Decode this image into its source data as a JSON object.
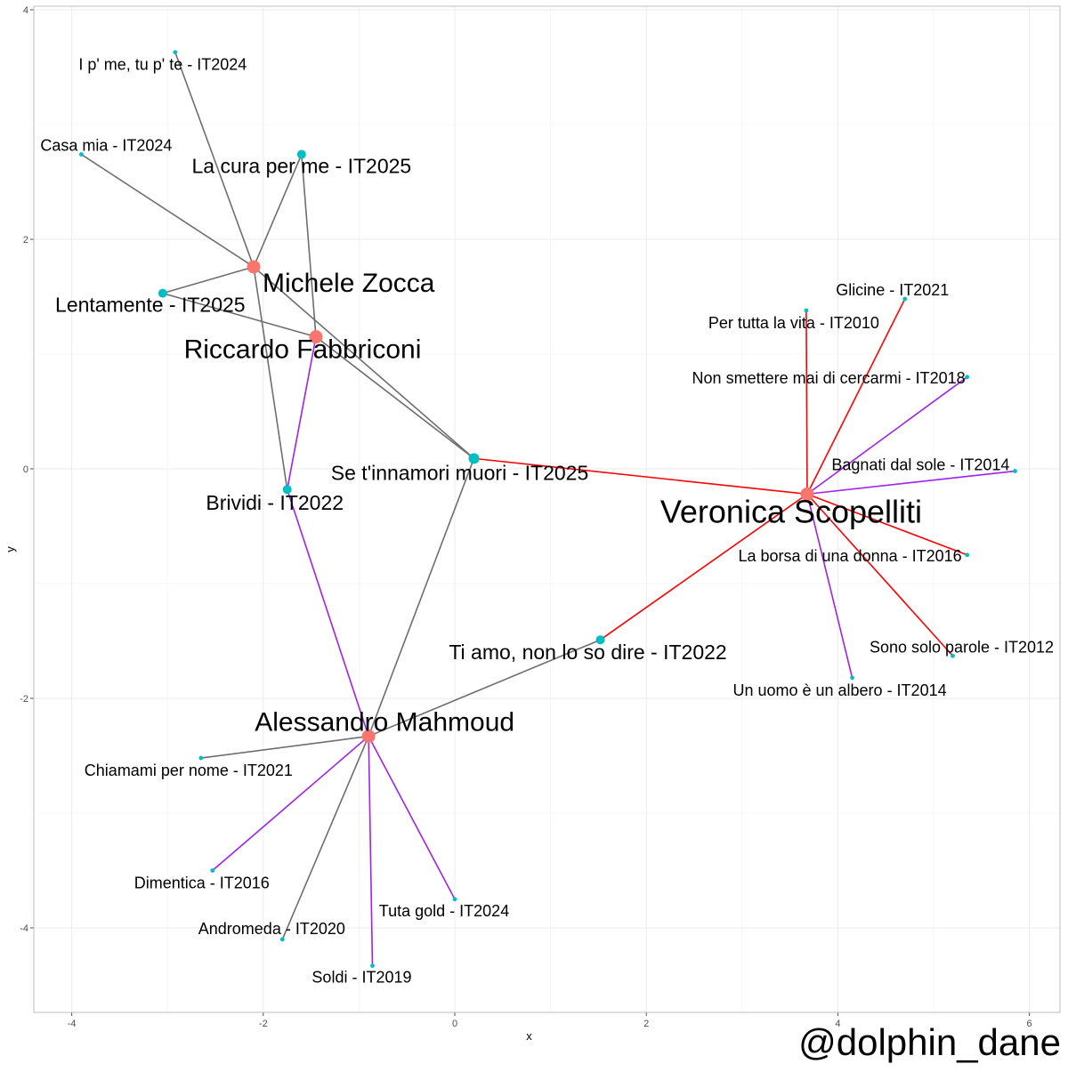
{
  "chart_data": {
    "type": "scatter",
    "subtype": "network-graph",
    "xlabel": "x",
    "ylabel": "y",
    "xlim": [
      -4.4,
      6.35
    ],
    "ylim": [
      -4.4,
      4.05
    ],
    "x_ticks": [
      -4,
      -2,
      0,
      2,
      4,
      6
    ],
    "y_ticks": [
      -4,
      -2,
      0,
      2,
      4
    ],
    "grid": true,
    "colors": {
      "artist_node": "#F8766D",
      "song_node": "#00BFC4",
      "edge_grey": "#6e6e6e",
      "edge_red": "#ff0000",
      "edge_purple": "#a020f0"
    },
    "nodes": [
      {
        "id": "michele",
        "label": "Michele Zocca",
        "kind": "artist",
        "x": -2.1,
        "y": 1.76,
        "dx": 10,
        "dy": 28,
        "anchor": "start",
        "size": "artist"
      },
      {
        "id": "riccardo",
        "label": "Riccardo Fabbriconi",
        "kind": "artist",
        "x": -1.45,
        "y": 1.15,
        "dx": -15,
        "dy": 24,
        "anchor": "middle",
        "size": "artist"
      },
      {
        "id": "veronica",
        "label": "Veronica Scopelliti",
        "kind": "artist",
        "x": 3.68,
        "y": -0.22,
        "dx": -18,
        "dy": 32,
        "anchor": "middle",
        "size": "artist-big"
      },
      {
        "id": "alessandro",
        "label": "Alessandro Mahmoud",
        "kind": "artist",
        "x": -0.9,
        "y": -2.33,
        "dx": 18,
        "dy": -6,
        "anchor": "middle",
        "size": "artist"
      },
      {
        "id": "s_ipme",
        "label": "I p' me, tu p' te - IT2024",
        "kind": "song",
        "x": -2.92,
        "y": 3.63,
        "dx": -14,
        "dy": 20,
        "anchor": "middle",
        "size": "small"
      },
      {
        "id": "s_casamia",
        "label": "Casa mia - IT2024",
        "kind": "song",
        "x": -3.9,
        "y": 2.74,
        "dx": 28,
        "dy": -4,
        "anchor": "middle",
        "size": "small"
      },
      {
        "id": "s_lacura",
        "label": "La cura per me - IT2025",
        "kind": "song",
        "x": -1.6,
        "y": 2.74,
        "dx": 0,
        "dy": 21,
        "anchor": "middle",
        "size": "big"
      },
      {
        "id": "s_lentamente",
        "label": "Lentamente - IT2025",
        "kind": "song",
        "x": -3.05,
        "y": 1.53,
        "dx": -14,
        "dy": 21,
        "anchor": "middle",
        "size": "big"
      },
      {
        "id": "s_seti",
        "label": "Se t'innamori muori - IT2025",
        "kind": "song",
        "x": 0.2,
        "y": 0.09,
        "dx": -16,
        "dy": 24,
        "anchor": "middle",
        "size": "big-label"
      },
      {
        "id": "s_brividi",
        "label": "Brividi - IT2022",
        "kind": "song",
        "x": -1.75,
        "y": -0.18,
        "dx": -14,
        "dy": 23,
        "anchor": "middle",
        "size": "big"
      },
      {
        "id": "s_tiamo",
        "label": "Ti amo, non lo so dire - IT2022",
        "kind": "song",
        "x": 1.52,
        "y": -1.49,
        "dx": -14,
        "dy": 22,
        "anchor": "middle",
        "size": "big"
      },
      {
        "id": "s_chiamami",
        "label": "Chiamami per nome - IT2021",
        "kind": "song",
        "x": -2.65,
        "y": -2.52,
        "dx": -14,
        "dy": 20,
        "anchor": "middle",
        "size": "small"
      },
      {
        "id": "s_dimentica",
        "label": "Dimentica - IT2016",
        "kind": "song",
        "x": -2.53,
        "y": -3.5,
        "dx": -12,
        "dy": 20,
        "anchor": "middle",
        "size": "small"
      },
      {
        "id": "s_andromeda",
        "label": "Andromeda - IT2020",
        "kind": "song",
        "x": -1.8,
        "y": -4.1,
        "dx": -12,
        "dy": -6,
        "anchor": "middle",
        "size": "small"
      },
      {
        "id": "s_soldi",
        "label": "Soldi - IT2019",
        "kind": "song",
        "x": -0.86,
        "y": -4.33,
        "dx": -12,
        "dy": 19,
        "anchor": "middle",
        "size": "small"
      },
      {
        "id": "s_tuta",
        "label": "Tuta gold - IT2024",
        "kind": "song",
        "x": 0.0,
        "y": -3.75,
        "dx": -12,
        "dy": 19,
        "anchor": "middle",
        "size": "small"
      },
      {
        "id": "s_glicine",
        "label": "Glicine - IT2021",
        "kind": "song",
        "x": 4.7,
        "y": 1.48,
        "dx": -14,
        "dy": -4,
        "anchor": "middle",
        "size": "small"
      },
      {
        "id": "s_pertutta",
        "label": "Per tutta la vita - IT2010",
        "kind": "song",
        "x": 3.67,
        "y": 1.38,
        "dx": -14,
        "dy": 20,
        "anchor": "middle",
        "size": "small"
      },
      {
        "id": "s_nonsmettere",
        "label": "Non smettere mai di cercarmi - IT2018",
        "kind": "song",
        "x": 5.35,
        "y": 0.8,
        "dx": -2,
        "dy": 7,
        "anchor": "end",
        "size": "small"
      },
      {
        "id": "s_bagnati",
        "label": "Bagnati dal sole - IT2014",
        "kind": "song",
        "x": 5.85,
        "y": -0.02,
        "dx": -6,
        "dy": -1,
        "anchor": "end",
        "size": "small"
      },
      {
        "id": "s_laborsa",
        "label": "La borsa di una donna - IT2016",
        "kind": "song",
        "x": 5.35,
        "y": -0.75,
        "dx": -6,
        "dy": 7,
        "anchor": "end",
        "size": "small"
      },
      {
        "id": "s_sonosolo",
        "label": "Sono solo parole  - IT2012",
        "kind": "song",
        "x": 5.2,
        "y": -1.63,
        "dx": 10,
        "dy": -4,
        "anchor": "middle",
        "size": "small"
      },
      {
        "id": "s_unuomo",
        "label": "Un uomo è un albero - IT2014",
        "kind": "song",
        "x": 4.15,
        "y": -1.82,
        "dx": -14,
        "dy": 20,
        "anchor": "middle",
        "size": "small"
      }
    ],
    "edges": [
      {
        "from": "michele",
        "to": "s_ipme",
        "color": "grey"
      },
      {
        "from": "michele",
        "to": "s_casamia",
        "color": "grey"
      },
      {
        "from": "michele",
        "to": "s_lacura",
        "color": "grey"
      },
      {
        "from": "michele",
        "to": "s_lentamente",
        "color": "grey"
      },
      {
        "from": "michele",
        "to": "s_seti",
        "color": "grey"
      },
      {
        "from": "michele",
        "to": "s_brividi",
        "color": "grey"
      },
      {
        "from": "riccardo",
        "to": "s_lacura",
        "color": "grey"
      },
      {
        "from": "riccardo",
        "to": "s_lentamente",
        "color": "grey"
      },
      {
        "from": "riccardo",
        "to": "s_seti",
        "color": "grey"
      },
      {
        "from": "riccardo",
        "to": "s_brividi",
        "color": "purple"
      },
      {
        "from": "alessandro",
        "to": "s_brividi",
        "color": "purple"
      },
      {
        "from": "alessandro",
        "to": "s_seti",
        "color": "grey"
      },
      {
        "from": "alessandro",
        "to": "s_tiamo",
        "color": "grey"
      },
      {
        "from": "alessandro",
        "to": "s_chiamami",
        "color": "grey"
      },
      {
        "from": "alessandro",
        "to": "s_dimentica",
        "color": "purple"
      },
      {
        "from": "alessandro",
        "to": "s_andromeda",
        "color": "grey"
      },
      {
        "from": "alessandro",
        "to": "s_soldi",
        "color": "purple"
      },
      {
        "from": "alessandro",
        "to": "s_tuta",
        "color": "purple"
      },
      {
        "from": "veronica",
        "to": "s_seti",
        "color": "red"
      },
      {
        "from": "veronica",
        "to": "s_tiamo",
        "color": "red"
      },
      {
        "from": "veronica",
        "to": "s_glicine",
        "color": "red"
      },
      {
        "from": "veronica",
        "to": "s_pertutta",
        "color": "red"
      },
      {
        "from": "veronica",
        "to": "s_nonsmettere",
        "color": "purple"
      },
      {
        "from": "veronica",
        "to": "s_bagnati",
        "color": "purple"
      },
      {
        "from": "veronica",
        "to": "s_laborsa",
        "color": "red"
      },
      {
        "from": "veronica",
        "to": "s_sonosolo",
        "color": "red"
      },
      {
        "from": "veronica",
        "to": "s_unuomo",
        "color": "purple"
      }
    ],
    "node_degree_size": {
      "s_seti": "large",
      "s_lacura": "medium",
      "s_lentamente": "medium",
      "s_brividi": "medium",
      "s_tiamo": "medium"
    }
  },
  "watermark": "@dolphin_dane"
}
